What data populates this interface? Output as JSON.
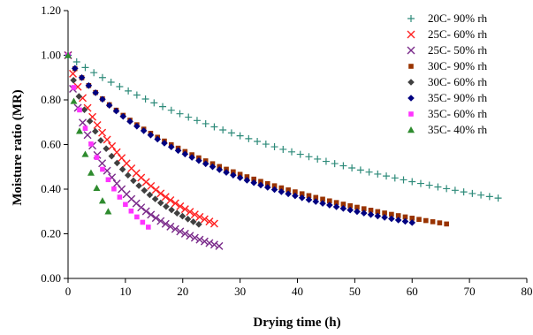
{
  "chart_data": {
    "type": "scatter",
    "title": "",
    "xlabel": "Drying time (h)",
    "ylabel": "Moisture ratio (MR)",
    "xlim": [
      0,
      80
    ],
    "ylim": [
      0,
      1.2
    ],
    "xticks": [
      0,
      10,
      20,
      30,
      40,
      50,
      60,
      70,
      80
    ],
    "yticks": [
      0,
      0.2,
      0.4,
      0.6,
      0.8,
      1.0,
      1.2
    ],
    "ytick_labels": [
      "0.00",
      "0.20",
      "0.40",
      "0.60",
      "0.80",
      "1.00",
      "1.20"
    ],
    "grid": false,
    "legend_position": "top-right",
    "series": [
      {
        "name": "20C- 90% rh",
        "marker": "plus",
        "color": "#2e8b7a",
        "x_start": 0,
        "x_end": 75,
        "step": 1.5,
        "y_start": 1.0,
        "y_end": 0.36,
        "curve": 0.9
      },
      {
        "name": "25C- 60% rh",
        "marker": "x",
        "color": "#ff2020",
        "x_start": 0,
        "x_end": 26,
        "step": 0.85,
        "y_start": 1.0,
        "y_end": 0.24,
        "curve": 0.82
      },
      {
        "name": "25C- 50% rh",
        "marker": "x",
        "color": "#7a2a8a",
        "x_start": 0,
        "x_end": 27,
        "step": 0.85,
        "y_start": 1.0,
        "y_end": 0.14,
        "curve": 0.72
      },
      {
        "name": "30C- 90% rh",
        "marker": "square",
        "color": "#993300",
        "x_start": 0,
        "x_end": 67,
        "step": 1.2,
        "y_start": 1.0,
        "y_end": 0.24,
        "curve": 0.78
      },
      {
        "name": "30C- 60% rh",
        "marker": "diamond",
        "color": "#404040",
        "x_start": 0,
        "x_end": 23,
        "step": 0.95,
        "y_start": 1.0,
        "y_end": 0.24,
        "curve": 0.78
      },
      {
        "name": "35C- 90% rh",
        "marker": "diamond",
        "color": "#000080",
        "x_start": 0,
        "x_end": 60,
        "step": 1.2,
        "y_start": 1.0,
        "y_end": 0.25,
        "curve": 0.8
      },
      {
        "name": "35C- 60% rh",
        "marker": "square",
        "color": "#ff33ff",
        "x_start": 0,
        "x_end": 14,
        "step": 1,
        "y_start": 1.0,
        "y_end": 0.23,
        "curve": 0.85
      },
      {
        "name": "35C- 40% rh",
        "marker": "triangle",
        "color": "#2e8b2e",
        "x_start": 0,
        "x_end": 7,
        "step": 1,
        "y_start": 1.0,
        "y_end": 0.3,
        "curve": 0.85
      }
    ]
  }
}
